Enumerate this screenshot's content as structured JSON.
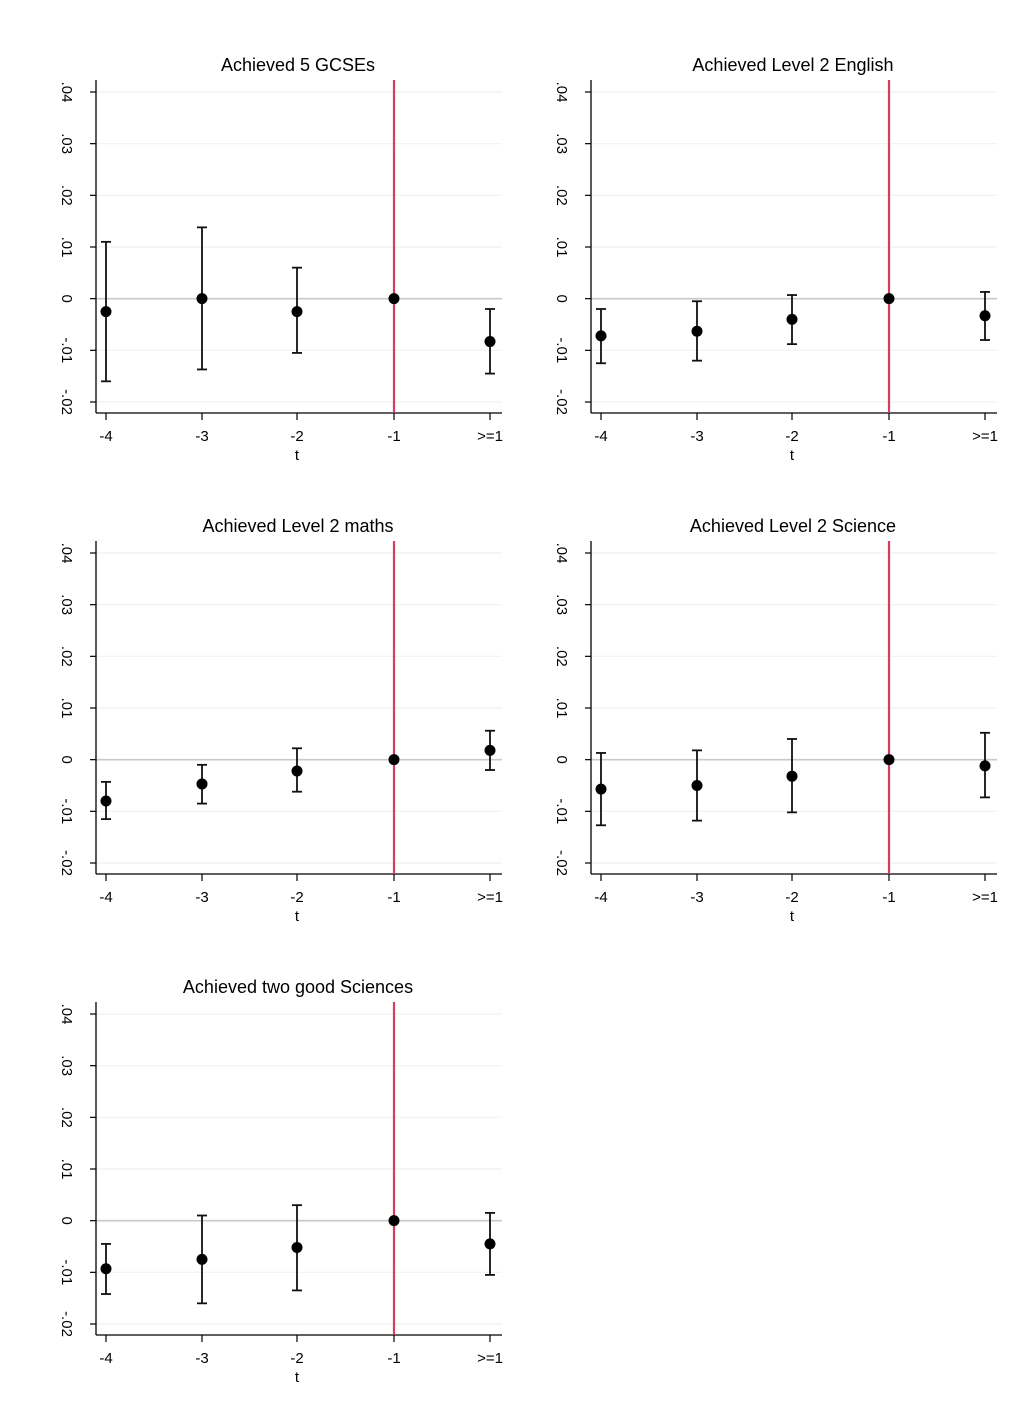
{
  "chart_data": [
    {
      "type": "scatter",
      "title": "Achieved 5 GCSEs",
      "xlabel": "t",
      "ylabel": "",
      "categories": [
        "-4",
        "-3",
        "-2",
        "-1",
        ">=1"
      ],
      "yticks": [
        ".04",
        ".03",
        ".02",
        ".01",
        "0",
        "-.01",
        "-.02"
      ],
      "ylim": [
        -0.022,
        0.042
      ],
      "reference_line": {
        "x": "-1",
        "color": "#d63c5e"
      },
      "horizontal_line": {
        "y": 0
      },
      "grid": true,
      "series": [
        {
          "values": [
            -0.0025,
            0.0,
            -0.0025,
            0.0,
            -0.0083
          ],
          "ci_low": [
            -0.016,
            -0.0137,
            -0.0105,
            0.0,
            -0.0145
          ],
          "ci_high": [
            0.011,
            0.0138,
            0.006,
            0.0,
            -0.002
          ]
        }
      ]
    },
    {
      "type": "scatter",
      "title": "Achieved Level 2 English",
      "xlabel": "t",
      "ylabel": "",
      "categories": [
        "-4",
        "-3",
        "-2",
        "-1",
        ">=1"
      ],
      "yticks": [
        ".04",
        ".03",
        ".02",
        ".01",
        "0",
        "-.01",
        "-.02"
      ],
      "ylim": [
        -0.022,
        0.042
      ],
      "reference_line": {
        "x": "-1",
        "color": "#d63c5e"
      },
      "horizontal_line": {
        "y": 0
      },
      "grid": true,
      "series": [
        {
          "values": [
            -0.0072,
            -0.0063,
            -0.004,
            0.0,
            -0.0033
          ],
          "ci_low": [
            -0.0125,
            -0.012,
            -0.0088,
            0.0,
            -0.008
          ],
          "ci_high": [
            -0.002,
            -0.0005,
            0.0007,
            0.0,
            0.0013
          ]
        }
      ]
    },
    {
      "type": "scatter",
      "title": "Achieved Level 2 maths",
      "xlabel": "t",
      "ylabel": "",
      "categories": [
        "-4",
        "-3",
        "-2",
        "-1",
        ">=1"
      ],
      "yticks": [
        ".04",
        ".03",
        ".02",
        ".01",
        "0",
        "-.01",
        "-.02"
      ],
      "ylim": [
        -0.022,
        0.042
      ],
      "reference_line": {
        "x": "-1",
        "color": "#d63c5e"
      },
      "horizontal_line": {
        "y": 0
      },
      "grid": true,
      "series": [
        {
          "values": [
            -0.008,
            -0.0047,
            -0.0022,
            0.0,
            0.0018
          ],
          "ci_low": [
            -0.0115,
            -0.0085,
            -0.0062,
            0.0,
            -0.002
          ],
          "ci_high": [
            -0.0043,
            -0.001,
            0.0022,
            0.0,
            0.0056
          ]
        }
      ]
    },
    {
      "type": "scatter",
      "title": "Achieved Level 2 Science",
      "xlabel": "t",
      "ylabel": "",
      "categories": [
        "-4",
        "-3",
        "-2",
        "-1",
        ">=1"
      ],
      "yticks": [
        ".04",
        ".03",
        ".02",
        ".01",
        "0",
        "-.01",
        "-.02"
      ],
      "ylim": [
        -0.022,
        0.042
      ],
      "reference_line": {
        "x": "-1",
        "color": "#d63c5e"
      },
      "horizontal_line": {
        "y": 0
      },
      "grid": true,
      "series": [
        {
          "values": [
            -0.0057,
            -0.005,
            -0.0032,
            0.0,
            -0.0012
          ],
          "ci_low": [
            -0.0127,
            -0.0118,
            -0.0102,
            0.0,
            -0.0073
          ],
          "ci_high": [
            0.0013,
            0.0018,
            0.004,
            0.0,
            0.0052
          ]
        }
      ]
    },
    {
      "type": "scatter",
      "title": "Achieved two good Sciences",
      "xlabel": "t",
      "ylabel": "",
      "categories": [
        "-4",
        "-3",
        "-2",
        "-1",
        ">=1"
      ],
      "yticks": [
        ".04",
        ".03",
        ".02",
        ".01",
        "0",
        "-.01",
        "-.02"
      ],
      "ylim": [
        -0.022,
        0.042
      ],
      "reference_line": {
        "x": "-1",
        "color": "#d63c5e"
      },
      "horizontal_line": {
        "y": 0
      },
      "grid": true,
      "series": [
        {
          "values": [
            -0.0093,
            -0.0075,
            -0.0052,
            0.0,
            -0.0045
          ],
          "ci_low": [
            -0.0142,
            -0.016,
            -0.0135,
            0.0,
            -0.0105
          ],
          "ci_high": [
            -0.0045,
            0.001,
            0.003,
            0.0,
            0.0015
          ]
        }
      ]
    }
  ]
}
